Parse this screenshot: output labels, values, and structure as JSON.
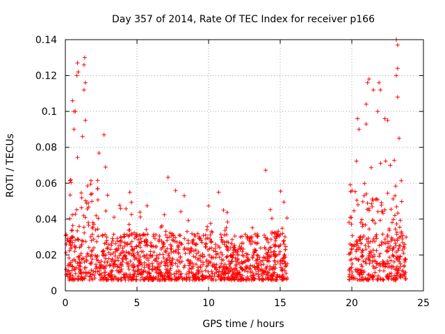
{
  "chart_data": {
    "type": "scatter",
    "title": "Day 357 of 2014, Rate Of TEC Index for receiver p166",
    "xlabel": "GPS time / hours",
    "ylabel": "ROTI / TECUs",
    "xlim": [
      0,
      25
    ],
    "ylim": [
      0,
      0.14
    ],
    "xticks": [
      0,
      5,
      10,
      15,
      20,
      25
    ],
    "yticks": [
      0,
      0.02,
      0.04,
      0.06,
      0.08,
      0.1,
      0.12,
      0.14
    ],
    "ytick_labels": [
      "0",
      "0.02",
      "0.04",
      "0.06",
      "0.08",
      "0.1",
      "0.12",
      "0.14"
    ],
    "grid": true,
    "marker": "+",
    "marker_color": "#ff0000",
    "segments": [
      {
        "start": 0.0,
        "end": 15.5
      },
      {
        "start": 19.8,
        "end": 23.8
      }
    ],
    "outliers": [
      {
        "x": 0.5,
        "y": 0.106
      },
      {
        "x": 0.6,
        "y": 0.1
      },
      {
        "x": 0.7,
        "y": 0.1
      },
      {
        "x": 0.8,
        "y": 0.12
      },
      {
        "x": 0.85,
        "y": 0.127
      },
      {
        "x": 0.9,
        "y": 0.122
      },
      {
        "x": 1.3,
        "y": 0.126
      },
      {
        "x": 1.35,
        "y": 0.13
      },
      {
        "x": 1.4,
        "y": 0.116
      },
      {
        "x": 1.3,
        "y": 0.112
      },
      {
        "x": 1.4,
        "y": 0.095
      },
      {
        "x": 0.6,
        "y": 0.09
      },
      {
        "x": 2.7,
        "y": 0.087
      },
      {
        "x": 2.8,
        "y": 0.069
      },
      {
        "x": 1.2,
        "y": 0.086
      },
      {
        "x": 4.5,
        "y": 0.055
      },
      {
        "x": 10.7,
        "y": 0.055
      },
      {
        "x": 8.3,
        "y": 0.053
      },
      {
        "x": 20.4,
        "y": 0.096
      },
      {
        "x": 20.5,
        "y": 0.09
      },
      {
        "x": 21.0,
        "y": 0.104
      },
      {
        "x": 21.1,
        "y": 0.116
      },
      {
        "x": 21.2,
        "y": 0.118
      },
      {
        "x": 21.5,
        "y": 0.112
      },
      {
        "x": 21.9,
        "y": 0.116
      },
      {
        "x": 22.0,
        "y": 0.112
      },
      {
        "x": 21.8,
        "y": 0.1
      },
      {
        "x": 22.3,
        "y": 0.096
      },
      {
        "x": 23.1,
        "y": 0.14
      },
      {
        "x": 23.2,
        "y": 0.137
      },
      {
        "x": 23.2,
        "y": 0.124
      },
      {
        "x": 23.1,
        "y": 0.12
      },
      {
        "x": 23.2,
        "y": 0.108
      },
      {
        "x": 23.3,
        "y": 0.085
      },
      {
        "x": 21.0,
        "y": 0.093
      },
      {
        "x": 22.5,
        "y": 0.095
      }
    ]
  }
}
